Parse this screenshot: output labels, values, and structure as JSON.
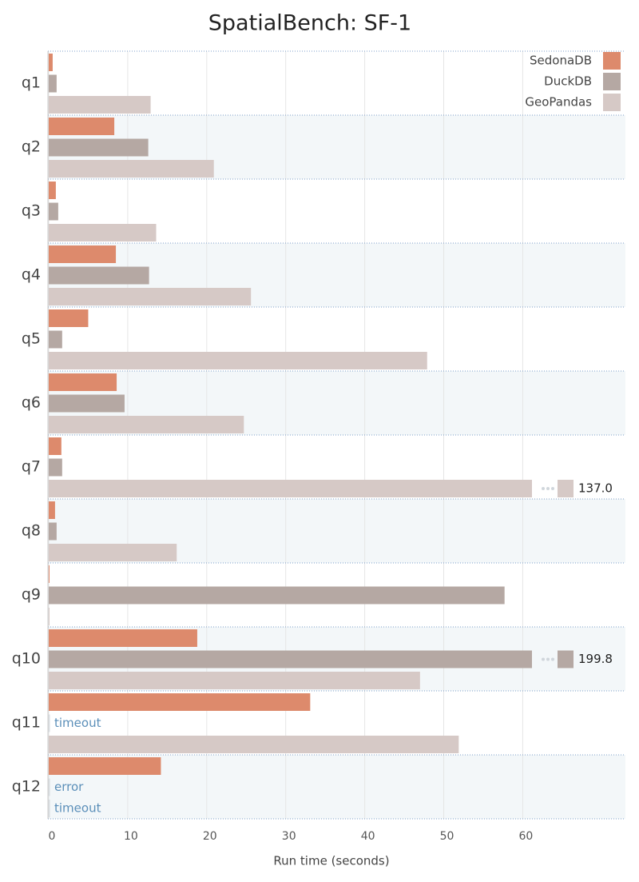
{
  "chart_data": {
    "type": "bar",
    "orientation": "horizontal",
    "title": "SpatialBench: SF-1",
    "x_label": "Run time (seconds)",
    "categories": [
      "q1",
      "q2",
      "q3",
      "q4",
      "q5",
      "q6",
      "q7",
      "q8",
      "q9",
      "q10",
      "q11",
      "q12"
    ],
    "series": [
      {
        "name": "SedonaDB",
        "color": "#dd8a6c",
        "values": [
          0.5,
          8.3,
          0.9,
          8.5,
          5.0,
          8.6,
          1.6,
          0.8,
          0.1,
          18.8,
          33.1,
          14.2
        ]
      },
      {
        "name": "DuckDB",
        "color": "#b5a8a3",
        "values": [
          1.0,
          12.6,
          1.2,
          12.7,
          1.7,
          9.6,
          1.7,
          1.0,
          57.7,
          199.8,
          null,
          null
        ],
        "value_labels": [
          null,
          null,
          null,
          null,
          null,
          null,
          null,
          null,
          null,
          "199.8",
          "timeout",
          "error"
        ]
      },
      {
        "name": "GeoPandas",
        "color": "#d6c9c6",
        "values": [
          12.9,
          20.9,
          13.6,
          25.6,
          47.9,
          24.7,
          137.0,
          16.2,
          0.1,
          47.0,
          51.9,
          null
        ],
        "value_labels": [
          null,
          null,
          null,
          null,
          null,
          null,
          "137.0",
          null,
          null,
          null,
          null,
          "timeout"
        ]
      }
    ],
    "xlim": [
      0,
      73
    ],
    "xticks": [
      0,
      10,
      20,
      30,
      40,
      50,
      60
    ],
    "grid": true,
    "legend": "top-right"
  }
}
